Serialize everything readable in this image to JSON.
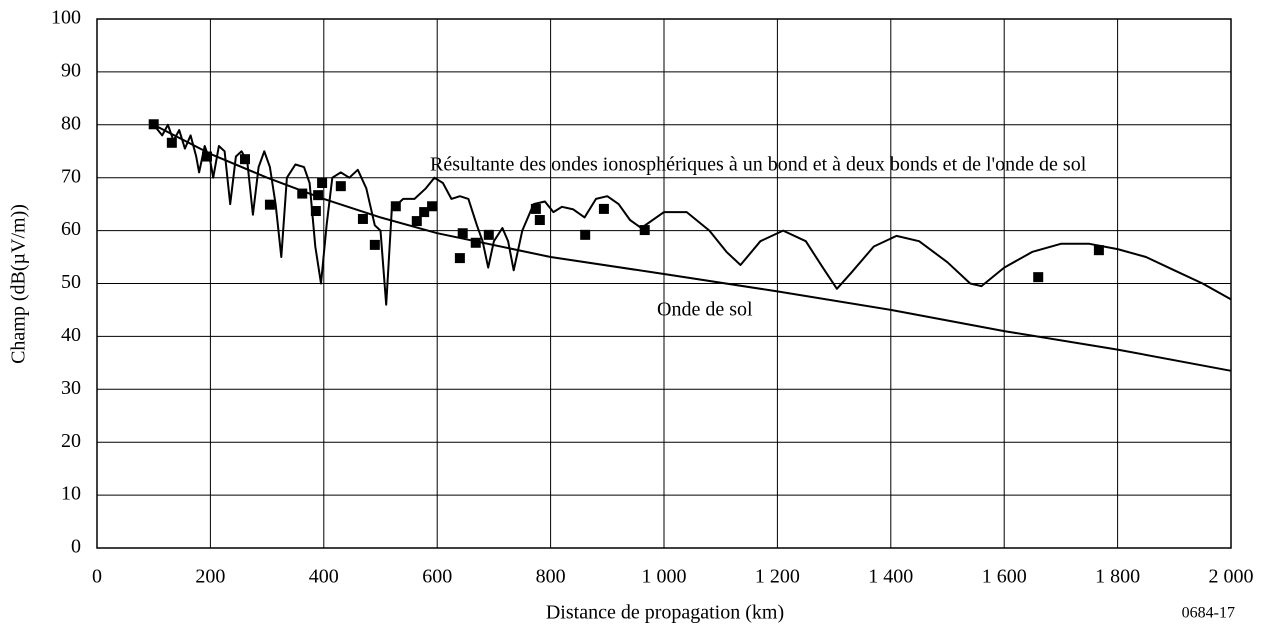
{
  "chart_data": {
    "type": "line",
    "x_label": "Distance de propagation (km)",
    "y_label": "Champ (dB(µV/m))",
    "figure_code": "0684-17",
    "annotations": [
      "Résultante des ondes ionosphériques à un bond et à deux bonds et de l'onde de sol",
      "Onde de sol"
    ],
    "xlim": [
      0,
      2000
    ],
    "xticks": [
      0,
      200,
      400,
      600,
      800,
      {
        "value": 1000,
        "label": "1 000"
      },
      {
        "value": 1200,
        "label": "1 200"
      },
      {
        "value": 1400,
        "label": "1 400"
      },
      {
        "value": 1600,
        "label": "1 600"
      },
      {
        "value": 1800,
        "label": "1 800"
      },
      {
        "value": 2000,
        "label": "2 000"
      }
    ],
    "ylim": [
      0,
      100
    ],
    "yticks": [
      0,
      10,
      20,
      30,
      40,
      50,
      60,
      70,
      80,
      90,
      100
    ],
    "grid": true,
    "series": [
      {
        "style": "line",
        "color": "#000000",
        "x": [
          100,
          115,
          125,
          135,
          145,
          155,
          165,
          175,
          180,
          190,
          200,
          205,
          215,
          225,
          235,
          245,
          255,
          265,
          275,
          285,
          295,
          305,
          315,
          325,
          335,
          350,
          365,
          375,
          385,
          395,
          405,
          415,
          430,
          445,
          460,
          475,
          490,
          500,
          510,
          520,
          540,
          560,
          580,
          595,
          610,
          625,
          640,
          655,
          670,
          680,
          690,
          700,
          715,
          725,
          735,
          750,
          770,
          790,
          805,
          820,
          840,
          860,
          880,
          900,
          920,
          940,
          960,
          1000,
          1040,
          1080,
          1110,
          1135,
          1170,
          1210,
          1250,
          1280,
          1305,
          1330,
          1370,
          1410,
          1450,
          1500,
          1540,
          1560,
          1600,
          1650,
          1700,
          1750,
          1800,
          1850,
          1900,
          1950,
          2000
        ],
        "values": [
          80,
          78,
          80,
          77,
          79,
          75.5,
          78,
          74,
          71,
          76,
          73,
          70,
          76,
          75,
          65,
          74,
          75,
          73,
          63,
          72,
          75,
          72,
          65,
          55,
          70,
          72.5,
          72,
          69,
          57,
          50,
          61,
          70,
          71,
          70,
          71.5,
          68,
          61,
          60,
          46,
          64,
          66,
          66,
          68,
          70,
          69,
          66,
          66.5,
          66,
          61,
          58,
          53,
          58,
          60.5,
          58,
          52.5,
          60,
          65,
          65.5,
          63.5,
          64.5,
          64,
          62.5,
          66,
          66.5,
          65,
          62,
          60.5,
          63.5,
          63.5,
          60,
          56,
          53.5,
          58,
          60,
          58,
          53,
          49,
          52,
          57,
          59,
          58,
          54,
          50,
          49.5,
          53,
          56,
          57.5,
          57.5,
          56.5,
          55,
          52.5,
          50,
          47
        ]
      },
      {
        "style": "line",
        "color": "#000000",
        "x": [
          100,
          200,
          300,
          400,
          500,
          600,
          800,
          1000,
          1200,
          1400,
          1600,
          1800,
          2000
        ],
        "values": [
          80,
          74.5,
          70,
          66,
          62.5,
          59.5,
          55,
          51.8,
          48.5,
          45,
          41,
          37.5,
          33.5
        ]
      },
      {
        "style": "square",
        "color": "#000000",
        "x": [
          100,
          132,
          194,
          261,
          305,
          362,
          386,
          390,
          397,
          430,
          469,
          490,
          527,
          564,
          577,
          591,
          640,
          645,
          668,
          691,
          774,
          781,
          861,
          894,
          966,
          1660,
          1767
        ],
        "values": [
          80.1,
          76.6,
          74,
          73.5,
          64.9,
          67,
          63.7,
          66.7,
          69,
          68.4,
          62.2,
          57.3,
          64.6,
          61.8,
          63.5,
          64.6,
          54.8,
          59.5,
          57.7,
          59.2,
          64.1,
          62,
          59.2,
          64.1,
          60.1,
          51.2,
          56.3
        ]
      }
    ]
  }
}
